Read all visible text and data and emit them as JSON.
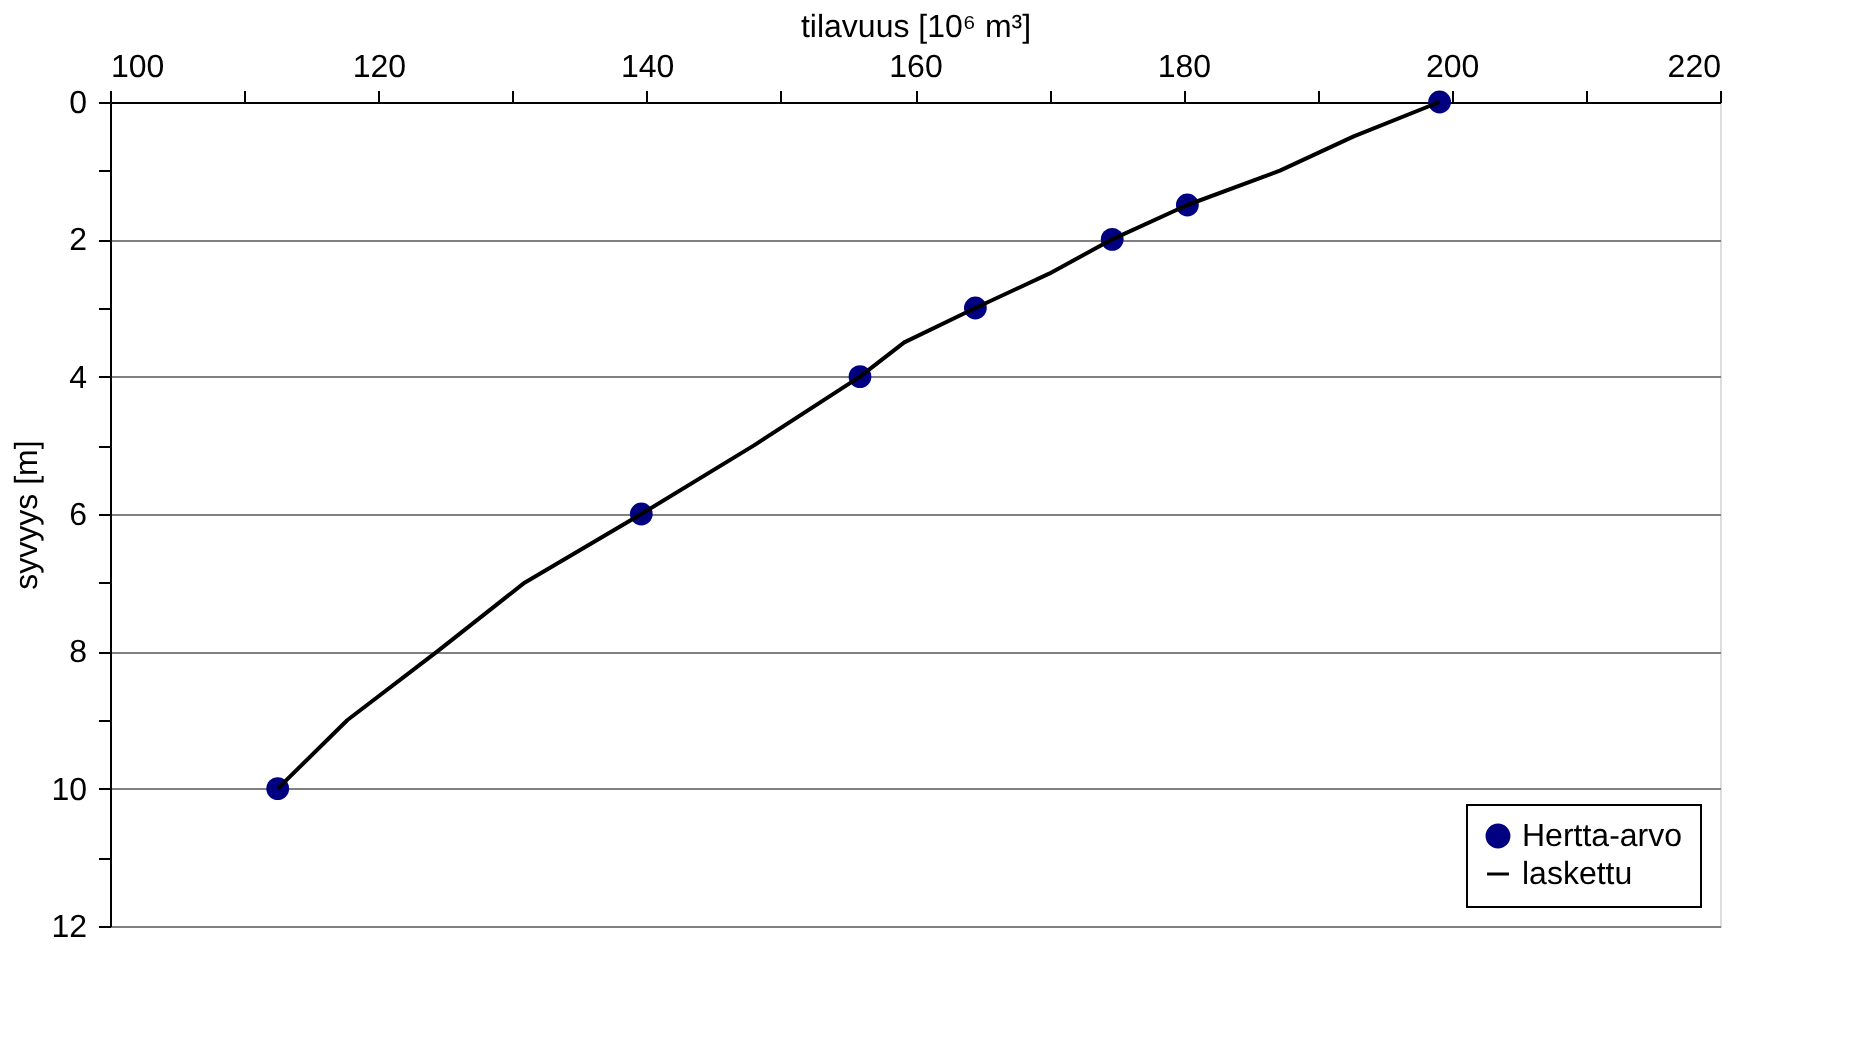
{
  "chart_data": {
    "type": "scatter",
    "xlabel": "tilavuus [10⁶ m³]",
    "ylabel": "syvyys [m]",
    "xlim": [
      100,
      220
    ],
    "xticks": [
      100,
      {
        "value": 110,
        "label": null
      },
      120,
      {
        "value": 130,
        "label": null
      },
      140,
      {
        "value": 150,
        "label": null
      },
      160,
      {
        "value": 170,
        "label": null
      },
      180,
      {
        "value": 190,
        "label": null
      },
      200,
      {
        "value": 210,
        "label": null
      },
      220
    ],
    "ylim": [
      12,
      0
    ],
    "yticks": [
      0,
      {
        "value": 1,
        "label": null
      },
      2,
      {
        "value": 3,
        "label": null
      },
      4,
      {
        "value": 5,
        "label": null
      },
      6,
      {
        "value": 7,
        "label": null
      },
      8,
      {
        "value": 9,
        "label": null
      },
      10,
      {
        "value": 11,
        "label": null
      },
      12
    ],
    "grid": "y",
    "legend": "bottom right",
    "series": [
      {
        "name": "Hertta-arvo",
        "marker": "circle",
        "color": "#000080",
        "x": [
          199.1,
          180.3,
          174.7,
          164.5,
          155.9,
          139.6,
          112.5
        ],
        "values": [
          0,
          1.5,
          2,
          3,
          4,
          6,
          10
        ]
      },
      {
        "name": "laskettu",
        "type": "line",
        "marker": "none",
        "line_style": "solid",
        "color": "#000000",
        "x": [
          199.1,
          192.7,
          187.2,
          180.3,
          174.7,
          170,
          164.5,
          159.2,
          155.9,
          148,
          139.6,
          130.9,
          124.4,
          117.7,
          112.5
        ],
        "values": [
          0,
          0.5,
          1,
          1.5,
          2,
          2.5,
          3,
          3.5,
          4,
          5,
          6,
          7,
          8,
          9,
          10
        ]
      }
    ]
  }
}
